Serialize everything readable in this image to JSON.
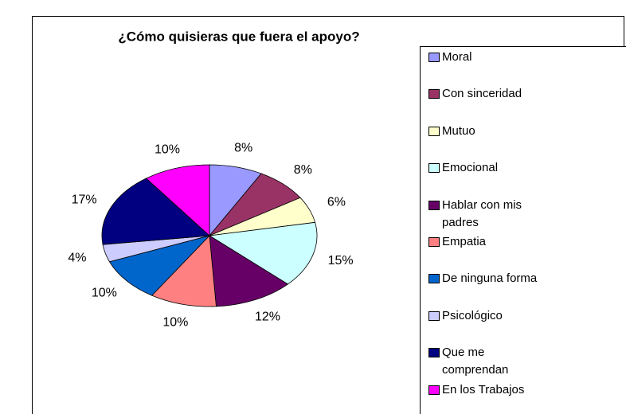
{
  "chart_data": {
    "type": "pie",
    "title": "¿Cómo quisieras que fuera el apoyo?",
    "categories": [
      "Moral",
      "Con sinceridad",
      "Mutuo",
      "Emocional",
      "Hablar con mis padres",
      "Empatia",
      "De ninguna forma",
      "Psicológico",
      "Que me comprendan",
      "En los Trabajos"
    ],
    "values": [
      8,
      8,
      6,
      15,
      12,
      10,
      10,
      4,
      17,
      10
    ],
    "value_labels": [
      "8%",
      "8%",
      "6%",
      "15%",
      "12%",
      "10%",
      "10%",
      "4%",
      "17%",
      "10%"
    ],
    "colors": [
      "#9999ff",
      "#993366",
      "#ffffcc",
      "#ccffff",
      "#660066",
      "#ff8080",
      "#0066cc",
      "#ccccff",
      "#000080",
      "#ff00ff"
    ],
    "legend": "right"
  }
}
